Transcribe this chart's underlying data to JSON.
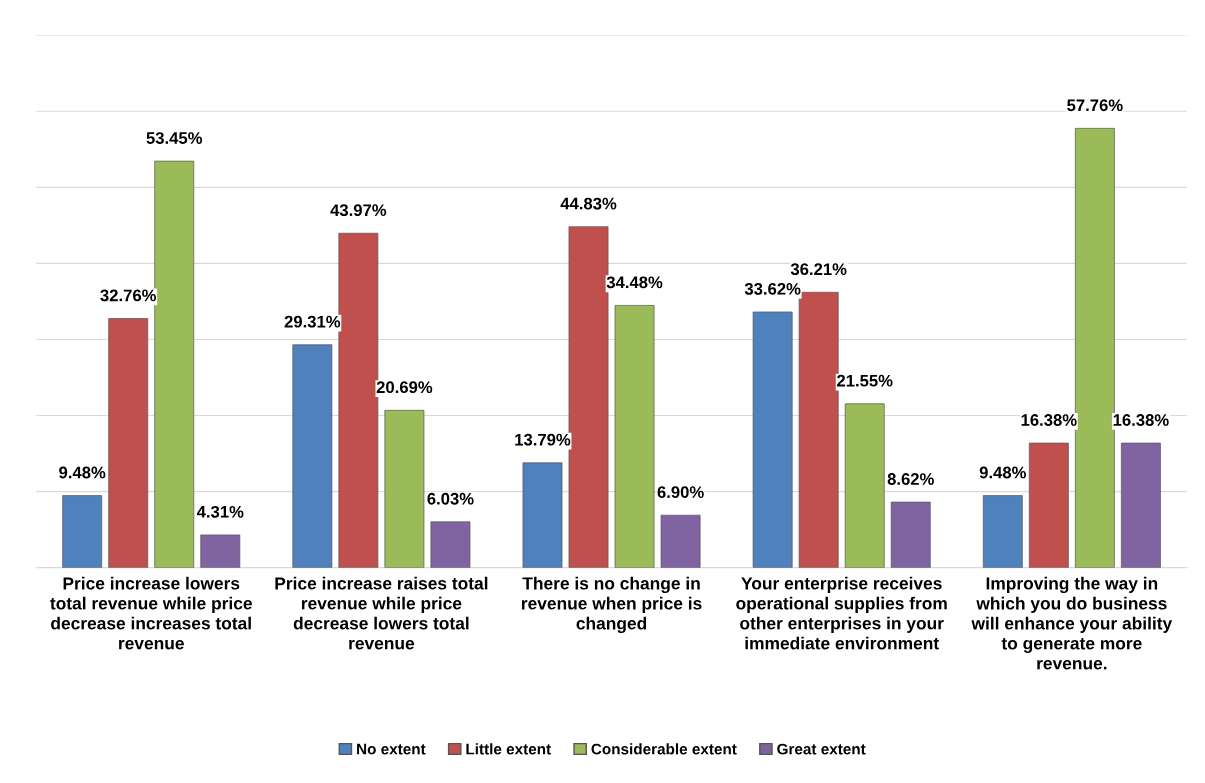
{
  "chart_data": {
    "type": "bar",
    "categories": [
      "Price increase lowers\ntotal revenue while price\ndecrease increases total\nrevenue",
      "Price increase raises total\nrevenue while price\ndecrease lowers total\nrevenue",
      "There is no change in\nrevenue when price is\nchanged",
      "Your enterprise receives\noperational supplies from\nother enterprises in your\nimmediate environment",
      "Improving the way in\nwhich you do business\nwill enhance your ability\nto generate more\nrevenue."
    ],
    "series": [
      {
        "name": "No extent",
        "color": "#4f81bd",
        "values": [
          9.48,
          29.31,
          13.79,
          33.62,
          9.48
        ],
        "value_labels": [
          "9.48%",
          "29.31%",
          "13.79%",
          "33.62%",
          "9.48%"
        ]
      },
      {
        "name": "Little extent",
        "color": "#c0504d",
        "values": [
          32.76,
          43.97,
          44.83,
          36.21,
          16.38
        ],
        "value_labels": [
          "32.76%",
          "43.97%",
          "44.83%",
          "36.21%",
          "16.38%"
        ]
      },
      {
        "name": "Considerable extent",
        "color": "#9bbb59",
        "values": [
          53.45,
          20.69,
          34.48,
          21.55,
          57.76
        ],
        "value_labels": [
          "53.45%",
          "20.69%",
          "34.48%",
          "21.55%",
          "57.76%"
        ]
      },
      {
        "name": "Great extent",
        "color": "#8064a2",
        "values": [
          4.31,
          6.03,
          6.9,
          8.62,
          16.38
        ],
        "value_labels": [
          "4.31%",
          "6.03%",
          "6.90%",
          "8.62%",
          "16.38%"
        ]
      }
    ],
    "ylim": [
      0,
      70
    ],
    "yticks": [
      {
        "value": 0,
        "label": null
      },
      {
        "value": 10,
        "label": null
      },
      {
        "value": 20,
        "label": null
      },
      {
        "value": 30,
        "label": null
      },
      {
        "value": 40,
        "label": null
      },
      {
        "value": 50,
        "label": null
      },
      {
        "value": 60,
        "label": null
      },
      {
        "value": 70,
        "label": null
      }
    ],
    "grid": "y",
    "legend": "bottom",
    "tick_labels": "x"
  }
}
